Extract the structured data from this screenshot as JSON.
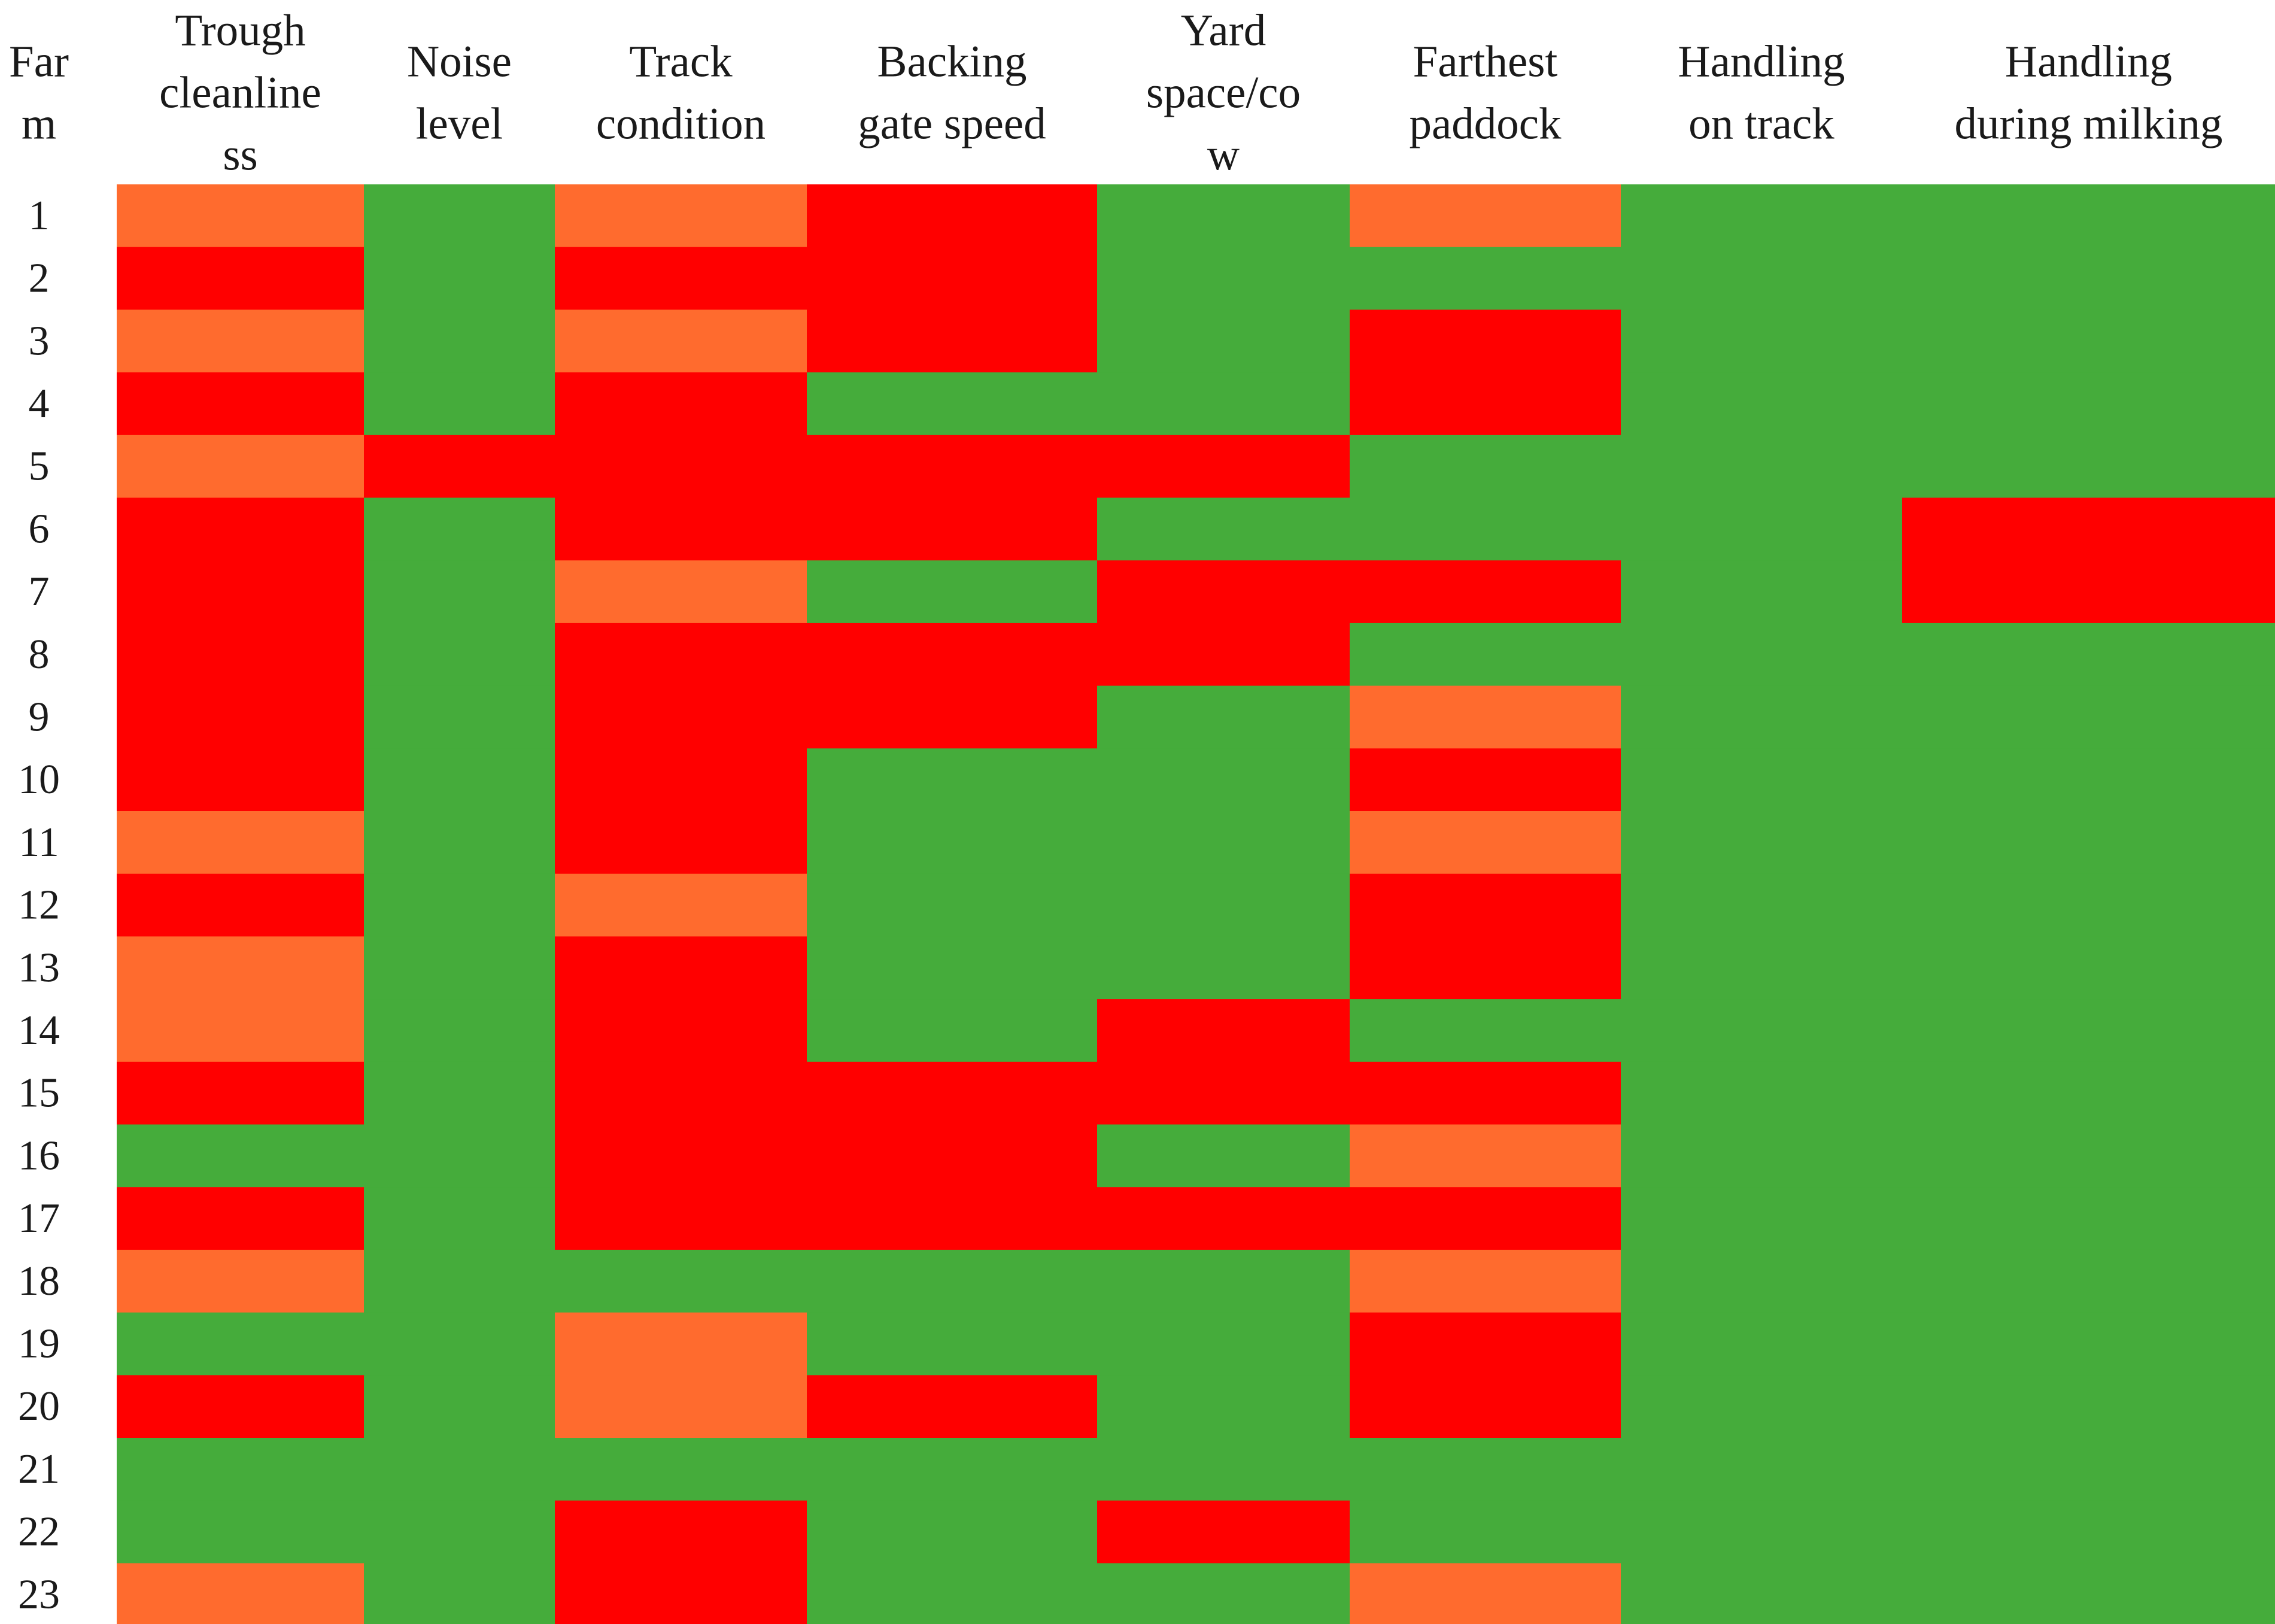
{
  "chart_data": {
    "type": "heatmap",
    "row_header_lines": [
      "Far",
      "m"
    ],
    "columns": [
      {
        "lines": [
          "Trough",
          "cleanline",
          "ss"
        ]
      },
      {
        "lines": [
          "Noise",
          "level"
        ]
      },
      {
        "lines": [
          "Track",
          "condition"
        ]
      },
      {
        "lines": [
          "Backing",
          "gate speed"
        ]
      },
      {
        "lines": [
          "Yard",
          "space/co",
          "w"
        ]
      },
      {
        "lines": [
          "Farthest",
          "paddock"
        ]
      },
      {
        "lines": [
          "Handling",
          "on track"
        ]
      },
      {
        "lines": [
          "Handling",
          "during milking"
        ]
      }
    ],
    "rows": [
      "1",
      "2",
      "3",
      "4",
      "5",
      "6",
      "7",
      "8",
      "9",
      "10",
      "11",
      "12",
      "13",
      "14",
      "15",
      "16",
      "17",
      "18",
      "19",
      "20",
      "21",
      "22",
      "23"
    ],
    "levels": {
      "G": "#45ac3b",
      "O": "#ff6b2e",
      "R": "#ff0000"
    },
    "cells": [
      [
        "O",
        "G",
        "O",
        "R",
        "G",
        "O",
        "G",
        "G"
      ],
      [
        "R",
        "G",
        "R",
        "R",
        "G",
        "G",
        "G",
        "G"
      ],
      [
        "O",
        "G",
        "O",
        "R",
        "G",
        "R",
        "G",
        "G"
      ],
      [
        "R",
        "G",
        "R",
        "G",
        "G",
        "R",
        "G",
        "G"
      ],
      [
        "O",
        "R",
        "R",
        "R",
        "R",
        "G",
        "G",
        "G"
      ],
      [
        "R",
        "G",
        "R",
        "R",
        "G",
        "G",
        "G",
        "R"
      ],
      [
        "R",
        "G",
        "O",
        "G",
        "R",
        "R",
        "G",
        "R"
      ],
      [
        "R",
        "G",
        "R",
        "R",
        "R",
        "G",
        "G",
        "G"
      ],
      [
        "R",
        "G",
        "R",
        "R",
        "G",
        "O",
        "G",
        "G"
      ],
      [
        "R",
        "G",
        "R",
        "G",
        "G",
        "R",
        "G",
        "G"
      ],
      [
        "O",
        "G",
        "R",
        "G",
        "G",
        "O",
        "G",
        "G"
      ],
      [
        "R",
        "G",
        "O",
        "G",
        "G",
        "R",
        "G",
        "G"
      ],
      [
        "O",
        "G",
        "R",
        "G",
        "G",
        "R",
        "G",
        "G"
      ],
      [
        "O",
        "G",
        "R",
        "G",
        "R",
        "G",
        "G",
        "G"
      ],
      [
        "R",
        "G",
        "R",
        "R",
        "R",
        "R",
        "G",
        "G"
      ],
      [
        "G",
        "G",
        "R",
        "R",
        "G",
        "O",
        "G",
        "G"
      ],
      [
        "R",
        "G",
        "R",
        "R",
        "R",
        "R",
        "G",
        "G"
      ],
      [
        "O",
        "G",
        "G",
        "G",
        "G",
        "O",
        "G",
        "G"
      ],
      [
        "G",
        "G",
        "O",
        "G",
        "G",
        "R",
        "G",
        "G"
      ],
      [
        "R",
        "G",
        "O",
        "R",
        "G",
        "R",
        "G",
        "G"
      ],
      [
        "G",
        "G",
        "G",
        "G",
        "G",
        "G",
        "G",
        "G"
      ],
      [
        "G",
        "G",
        "R",
        "G",
        "R",
        "G",
        "G",
        "G"
      ],
      [
        "O",
        "G",
        "R",
        "G",
        "G",
        "O",
        "G",
        "G"
      ]
    ]
  }
}
